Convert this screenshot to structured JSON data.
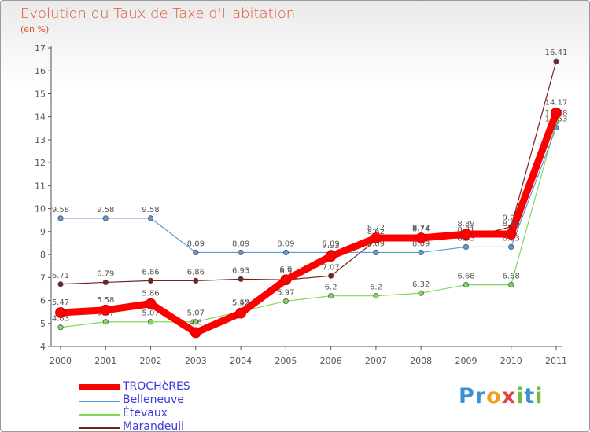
{
  "header": {
    "title": "Evolution du Taux de Taxe d'Habitation",
    "subtitle": "(en %)"
  },
  "logo": {
    "text": "Proxiti",
    "letters": [
      "P",
      "r",
      "o",
      "x",
      "i",
      "t",
      "i"
    ]
  },
  "chart_data": {
    "type": "line",
    "title": "Evolution du Taux de Taxe d'Habitation",
    "ylabel": "(en %)",
    "xlabel": "",
    "ylim": [
      4,
      17
    ],
    "yticks": [
      "4",
      "5",
      "6",
      "7",
      "8",
      "9",
      "10",
      "11",
      "12",
      "13",
      "14",
      "15",
      "16",
      "17"
    ],
    "categories": [
      "2000",
      "2001",
      "2002",
      "2003",
      "2004",
      "2005",
      "2006",
      "2007",
      "2008",
      "2009",
      "2010",
      "2011"
    ],
    "legend_position": "bottom-left",
    "series": [
      {
        "name": "Marandeuil",
        "color": "#7a2020",
        "values": [
          6.71,
          6.79,
          6.86,
          6.86,
          6.93,
          6.9,
          7.07,
          8.62,
          8.74,
          8.71,
          9.21,
          16.41
        ],
        "labels": [
          "6.71",
          "6.79",
          "6.86",
          "6.86",
          "6.93",
          "6.9",
          "7.07",
          "8.62",
          "8.74",
          "8.71",
          "9.21",
          "16.41"
        ]
      },
      {
        "name": "Étevaux",
        "color": "#7ed957",
        "values": [
          4.83,
          5.07,
          5.07,
          5.07,
          5.52,
          5.97,
          6.2,
          6.2,
          6.32,
          6.68,
          6.68,
          13.78
        ],
        "labels": [
          "4.83",
          "5.07",
          "5.07",
          "5.07",
          "5.52",
          "5.97",
          "6.2",
          "6.2",
          "6.32",
          "6.68",
          "6.68",
          "13.78"
        ]
      },
      {
        "name": "Belleneuve",
        "color": "#5b9bd5",
        "values": [
          9.58,
          9.58,
          9.58,
          8.09,
          8.09,
          8.09,
          8.09,
          8.09,
          8.09,
          8.33,
          8.33,
          13.53
        ],
        "labels": [
          "9.58",
          "9.58",
          "9.58",
          "8.09",
          "8.09",
          "8.09",
          "8.09",
          "8.09",
          "8.09",
          "8.33",
          "8.33",
          "13.53"
        ]
      },
      {
        "name": "TROCHèRES",
        "color": "#ff0000",
        "values": [
          5.47,
          5.58,
          5.86,
          4.6,
          5.45,
          6.9,
          7.93,
          8.72,
          8.72,
          8.89,
          8.89,
          14.17
        ],
        "labels": [
          "5.47",
          "5.58",
          "5.86",
          "4.6",
          "5.45",
          "6.9",
          "7.93",
          "8.72",
          "8.72",
          "8.89",
          "8.89",
          "14.17"
        ]
      }
    ],
    "legend_order": [
      "TROCHèRES",
      "Belleneuve",
      "Étevaux",
      "Marandeuil"
    ]
  }
}
